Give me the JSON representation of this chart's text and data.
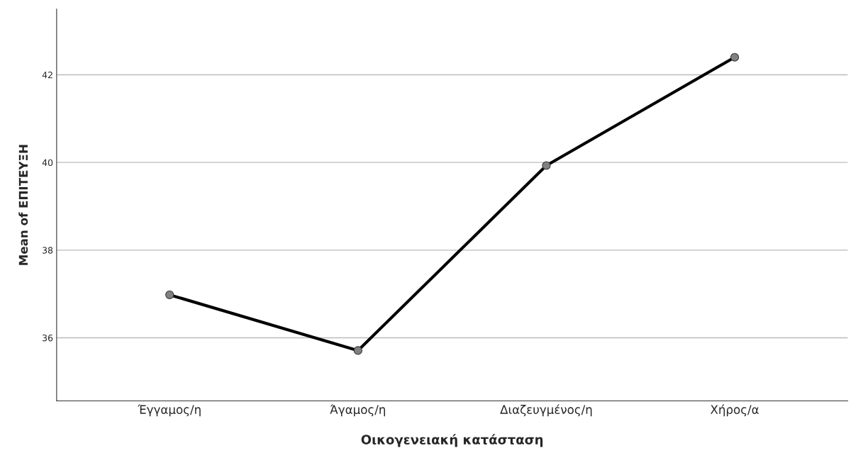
{
  "chart_data": {
    "type": "line",
    "xlabel": "Οικογενειακή κατάσταση",
    "ylabel": "Mean of ΕΠΙΤΕΥΞΗ",
    "categories": [
      "Έγγαμος/η",
      "Άγαμος/η",
      "Διαζευγμένος/η",
      "Χήρος/α"
    ],
    "series": [
      {
        "color": "#000000",
        "values": [
          36.98,
          35.71,
          39.93,
          42.4
        ]
      }
    ],
    "ylim": [
      34.56,
      43.5
    ],
    "yticks": [
      36,
      38,
      40,
      42
    ],
    "grid": "y",
    "marker": "circle",
    "line_style": "solid"
  }
}
